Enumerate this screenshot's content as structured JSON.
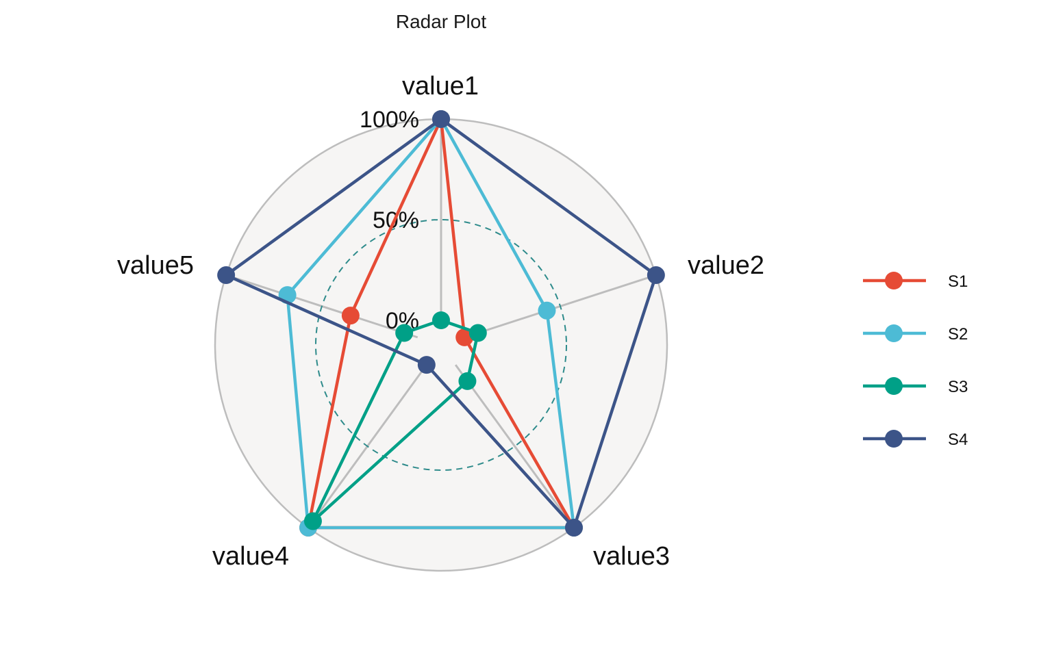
{
  "chart_data": {
    "type": "radar",
    "title": "Radar Plot",
    "axes": [
      "value1",
      "value2",
      "value3",
      "value4",
      "value5"
    ],
    "radial_ticks": [
      "0%",
      "50%",
      "100%"
    ],
    "range": [
      0,
      1
    ],
    "grid_dashed_at": 0.5,
    "legend_position": "right",
    "series": [
      {
        "name": "S1",
        "color": "#E64B35",
        "values": [
          1.0,
          0.0,
          1.0,
          1.0,
          0.35
        ]
      },
      {
        "name": "S2",
        "color": "#4DBBD5",
        "values": [
          1.0,
          0.43,
          1.0,
          1.0,
          0.68
        ]
      },
      {
        "name": "S3",
        "color": "#00A087",
        "values": [
          0.0,
          0.07,
          0.1,
          0.96,
          0.07
        ]
      },
      {
        "name": "S4",
        "color": "#3C5488",
        "values": [
          1.0,
          1.0,
          1.0,
          0.0,
          1.0
        ]
      }
    ],
    "colors": {
      "panel_fill": "#F6F5F4",
      "grid": "#BDBDBD",
      "mid_circle": "#2E8B8B"
    }
  }
}
